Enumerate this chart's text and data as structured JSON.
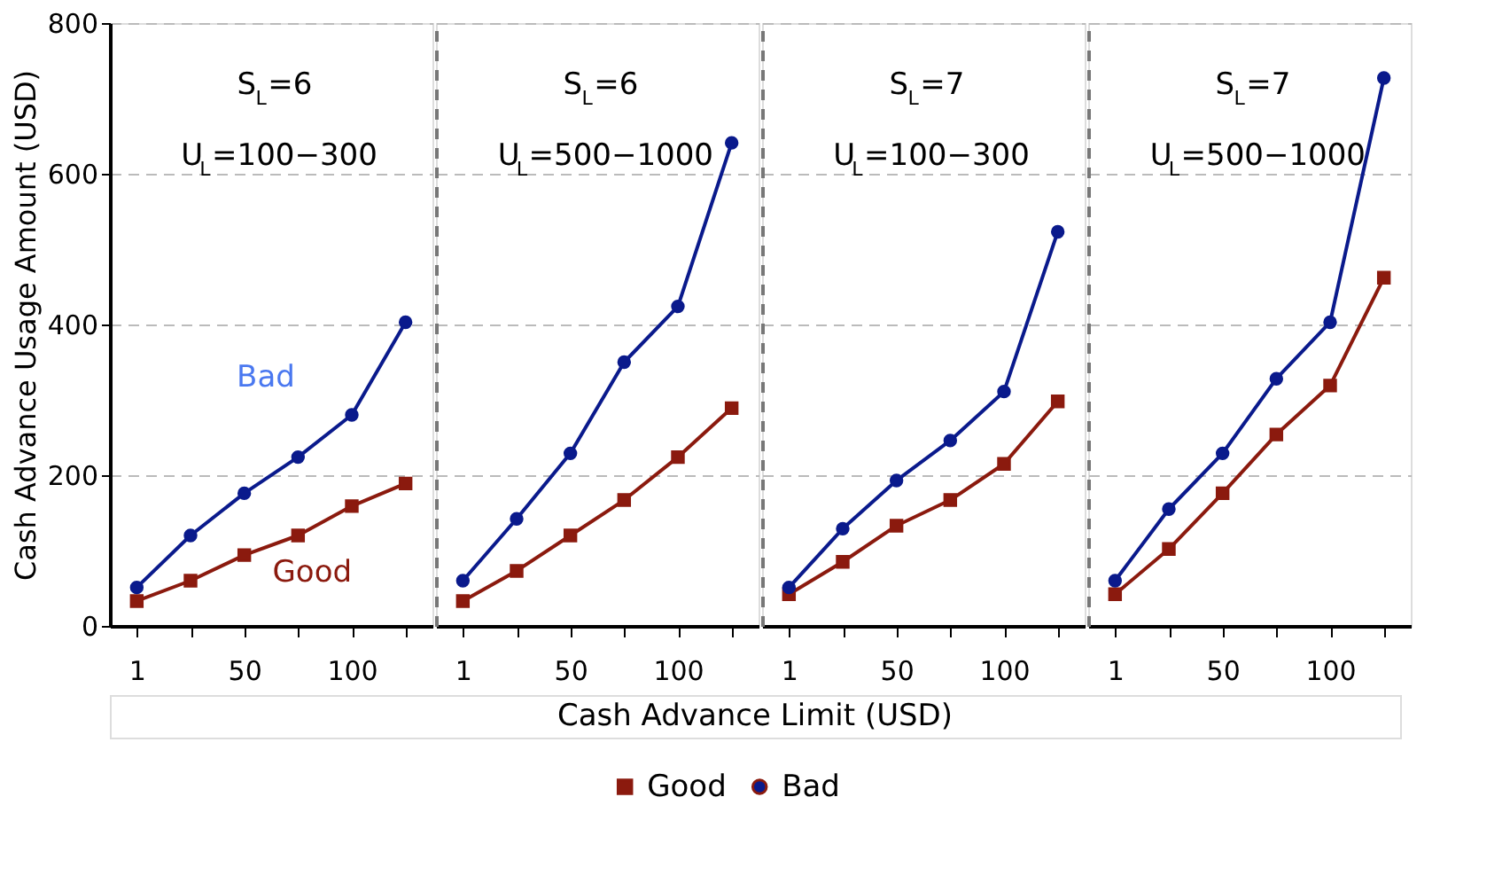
{
  "chart_data": [
    {
      "type": "line",
      "ylabel": "Cash Advance Usage Amount (USD)",
      "xlabel": "Cash Advance Limit (USD)",
      "legend": "bottom",
      "grid": "y",
      "line_style": "solid",
      "categories": [
        "1",
        null,
        "50",
        null,
        "100",
        null
      ],
      "ylim": [
        0,
        800
      ],
      "yticks": [
        0,
        200,
        400,
        600,
        800
      ],
      "annotations": [
        "S$_{L}$=6",
        "U$_{L}$=100−300",
        "Good",
        "Bad"
      ],
      "series": [
        {
          "name": "Good",
          "color": "#8b1a0e",
          "marker": "square",
          "values": [
            33,
            60,
            94,
            120,
            159,
            189
          ]
        },
        {
          "name": "Bad",
          "color": "#0a1a8c",
          "marker": "circle",
          "values": [
            51,
            120,
            176,
            224,
            280,
            403
          ]
        }
      ]
    },
    {
      "type": "line",
      "grid": "y",
      "tick_labels": "x",
      "line_style": "solid",
      "categories": [
        "1",
        null,
        "50",
        null,
        "100",
        null
      ],
      "ylim": [
        0,
        800
      ],
      "yticks": [
        0,
        200,
        400,
        600,
        800
      ],
      "annotations": [
        "S$_{L}$=6",
        "U$_{L}$=500−1000"
      ],
      "series": [
        {
          "color": "#8b1a0e",
          "marker": "square",
          "values": [
            33,
            73,
            120,
            167,
            224,
            289
          ]
        },
        {
          "color": "#0a1a8c",
          "marker": "circle",
          "values": [
            60,
            142,
            229,
            350,
            424,
            641
          ]
        }
      ]
    },
    {
      "type": "line",
      "grid": "y",
      "tick_labels": "x",
      "line_style": "solid",
      "categories": [
        "1",
        null,
        "50",
        null,
        "100",
        null
      ],
      "ylim": [
        0,
        800
      ],
      "yticks": [
        0,
        200,
        400,
        600,
        800
      ],
      "annotations": [
        "S$_{L}$=7",
        "U$_{L}$=100−300"
      ],
      "series": [
        {
          "color": "#8b1a0e",
          "marker": "square",
          "values": [
            42,
            85,
            133,
            167,
            215,
            298
          ]
        },
        {
          "color": "#0a1a8c",
          "marker": "circle",
          "values": [
            51,
            129,
            193,
            246,
            311,
            523
          ]
        }
      ]
    },
    {
      "type": "line",
      "grid": "y",
      "tick_labels": "x",
      "line_style": "solid",
      "categories": [
        "1",
        null,
        "50",
        null,
        "100",
        null
      ],
      "ylim": [
        0,
        800
      ],
      "yticks": [
        0,
        200,
        400,
        600,
        800
      ],
      "annotations": [
        "S$_{L}$=7",
        "U$_{L}$=500−1000"
      ],
      "series": [
        {
          "color": "#8b1a0e",
          "marker": "square",
          "values": [
            42,
            102,
            176,
            254,
            319,
            462
          ]
        },
        {
          "color": "#0a1a8c",
          "marker": "circle",
          "values": [
            60,
            155,
            229,
            328,
            403,
            727
          ]
        }
      ]
    }
  ]
}
